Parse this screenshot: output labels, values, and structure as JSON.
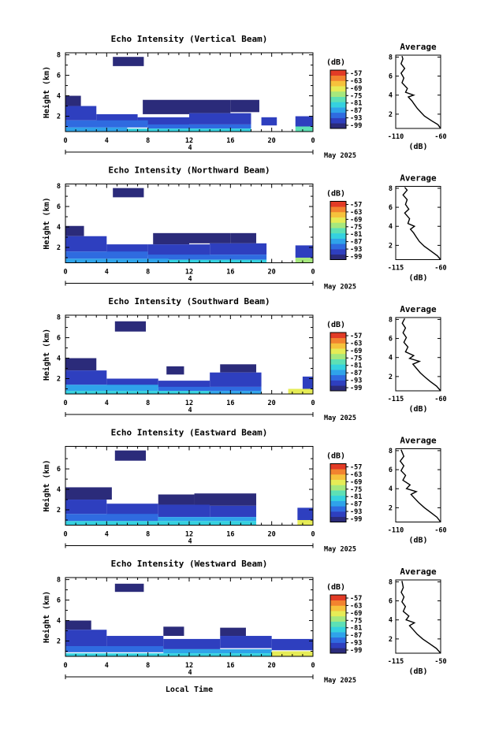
{
  "figure": {
    "footer_label": "Local Time",
    "date_label": "May 2025",
    "colorbar_unit": "(dB)",
    "average_title": "Average",
    "average_xlabel": "(dB)"
  },
  "colors": {
    "palette": [
      "#2b2b7a",
      "#2e3fbf",
      "#2f6be0",
      "#2fa3ea",
      "#35d1df",
      "#5de0b5",
      "#a6e87d",
      "#e6ec56",
      "#f6c23c",
      "#f2832f",
      "#e23b26"
    ]
  },
  "chart_data": [
    {
      "type": "heatmap",
      "title": "Echo Intensity (Vertical Beam)",
      "ylabel": "Height (km)",
      "x": [
        0,
        4,
        8,
        12,
        16,
        20,
        0
      ],
      "y_ticks": [
        2,
        4,
        6,
        8
      ],
      "ylim": [
        0.5,
        8.2
      ],
      "sublabel": "4",
      "colorbar": {
        "ticks": [
          -57,
          -63,
          -69,
          -75,
          -81,
          -87,
          -93,
          -99
        ]
      },
      "average": {
        "title": "Average",
        "xlabel": "(dB)",
        "xlim": [
          -110,
          -60
        ],
        "x_ticks": [
          -110,
          -60
        ],
        "y_ticks": [
          2,
          4,
          6,
          8
        ]
      },
      "regions": [
        {
          "x0": 4.6,
          "x1": 7.6,
          "y0": 6.9,
          "y1": 7.8,
          "level": 0
        },
        {
          "x0": 0.0,
          "x1": 1.5,
          "y0": 3.0,
          "y1": 4.0,
          "level": 0
        },
        {
          "x0": 7.5,
          "x1": 12.0,
          "y0": 2.2,
          "y1": 3.6,
          "level": 0
        },
        {
          "x0": 12.0,
          "x1": 16.0,
          "y0": 2.3,
          "y1": 3.6,
          "level": 0
        },
        {
          "x0": 16.0,
          "x1": 18.8,
          "y0": 2.4,
          "y1": 3.6,
          "level": 0
        },
        {
          "x0": 0.0,
          "x1": 3.0,
          "y0": 1.6,
          "y1": 3.0,
          "level": 1
        },
        {
          "x0": 3.0,
          "x1": 7.0,
          "y0": 1.4,
          "y1": 2.2,
          "level": 1
        },
        {
          "x0": 7.0,
          "x1": 12.0,
          "y0": 1.1,
          "y1": 1.9,
          "level": 1
        },
        {
          "x0": 12.0,
          "x1": 18.0,
          "y0": 1.2,
          "y1": 2.3,
          "level": 1
        },
        {
          "x0": 19.0,
          "x1": 20.5,
          "y0": 1.1,
          "y1": 1.9,
          "level": 1
        },
        {
          "x0": 22.3,
          "x1": 24.0,
          "y0": 1.0,
          "y1": 2.0,
          "level": 1
        },
        {
          "x0": 0.0,
          "x1": 8.0,
          "y0": 0.9,
          "y1": 1.6,
          "level": 2
        },
        {
          "x0": 8.0,
          "x1": 18.0,
          "y0": 0.8,
          "y1": 1.2,
          "level": 2
        },
        {
          "x0": 0.0,
          "x1": 6.0,
          "y0": 0.5,
          "y1": 0.9,
          "level": 3
        },
        {
          "x0": 6.0,
          "x1": 18.0,
          "y0": 0.5,
          "y1": 0.8,
          "level": 4
        },
        {
          "x0": 22.3,
          "x1": 24.0,
          "y0": 0.5,
          "y1": 1.0,
          "level": 5
        }
      ],
      "average_profile": [
        [
          -60,
          0.5
        ],
        [
          -63,
          0.9
        ],
        [
          -70,
          1.3
        ],
        [
          -78,
          1.8
        ],
        [
          -82,
          2.2
        ],
        [
          -86,
          2.6
        ],
        [
          -89,
          3.0
        ],
        [
          -92,
          3.4
        ],
        [
          -96,
          3.8
        ],
        [
          -90,
          4.0
        ],
        [
          -99,
          4.3
        ],
        [
          -97,
          4.7
        ],
        [
          -103,
          5.3
        ],
        [
          -101,
          5.8
        ],
        [
          -104,
          6.3
        ],
        [
          -100,
          6.8
        ],
        [
          -104,
          7.3
        ],
        [
          -102,
          7.8
        ],
        [
          -103,
          8.1
        ]
      ]
    },
    {
      "type": "heatmap",
      "title": "Echo Intensity (Northward Beam)",
      "ylabel": "Height (km)",
      "x": [
        0,
        4,
        8,
        12,
        16,
        20,
        0
      ],
      "y_ticks": [
        2,
        4,
        6,
        8
      ],
      "ylim": [
        0.5,
        8.2
      ],
      "sublabel": "4",
      "colorbar": {
        "ticks": [
          -57,
          -63,
          -69,
          -75,
          -81,
          -87,
          -93,
          -99
        ]
      },
      "average": {
        "title": "Average",
        "xlabel": "(dB)",
        "xlim": [
          -115,
          -60
        ],
        "x_ticks": [
          -115,
          -60
        ],
        "y_ticks": [
          2,
          4,
          6,
          8
        ]
      },
      "regions": [
        {
          "x0": 4.6,
          "x1": 7.6,
          "y0": 6.9,
          "y1": 7.8,
          "level": 0
        },
        {
          "x0": 0.0,
          "x1": 1.8,
          "y0": 3.1,
          "y1": 4.1,
          "level": 0
        },
        {
          "x0": 8.5,
          "x1": 12.0,
          "y0": 2.3,
          "y1": 3.4,
          "level": 0
        },
        {
          "x0": 12.0,
          "x1": 16.0,
          "y0": 2.4,
          "y1": 3.4,
          "level": 0
        },
        {
          "x0": 16.0,
          "x1": 18.5,
          "y0": 2.4,
          "y1": 3.4,
          "level": 0
        },
        {
          "x0": 0.0,
          "x1": 4.0,
          "y0": 1.6,
          "y1": 3.1,
          "level": 1
        },
        {
          "x0": 4.0,
          "x1": 8.0,
          "y0": 1.3,
          "y1": 2.3,
          "level": 1
        },
        {
          "x0": 8.0,
          "x1": 14.0,
          "y0": 1.2,
          "y1": 2.3,
          "level": 1
        },
        {
          "x0": 14.0,
          "x1": 19.5,
          "y0": 1.3,
          "y1": 2.4,
          "level": 1
        },
        {
          "x0": 22.3,
          "x1": 24.0,
          "y0": 1.0,
          "y1": 2.2,
          "level": 1
        },
        {
          "x0": 0.0,
          "x1": 8.0,
          "y0": 0.9,
          "y1": 1.6,
          "level": 2
        },
        {
          "x0": 8.0,
          "x1": 19.5,
          "y0": 0.8,
          "y1": 1.3,
          "level": 2
        },
        {
          "x0": 0.0,
          "x1": 10.0,
          "y0": 0.5,
          "y1": 0.9,
          "level": 3
        },
        {
          "x0": 10.0,
          "x1": 19.5,
          "y0": 0.5,
          "y1": 0.8,
          "level": 4
        },
        {
          "x0": 22.3,
          "x1": 24.0,
          "y0": 0.5,
          "y1": 1.0,
          "level": 6
        }
      ],
      "average_profile": [
        [
          -60,
          0.5
        ],
        [
          -64,
          0.9
        ],
        [
          -72,
          1.4
        ],
        [
          -80,
          1.9
        ],
        [
          -86,
          2.4
        ],
        [
          -90,
          2.9
        ],
        [
          -93,
          3.3
        ],
        [
          -97,
          3.7
        ],
        [
          -92,
          4.0
        ],
        [
          -100,
          4.3
        ],
        [
          -98,
          4.8
        ],
        [
          -104,
          5.4
        ],
        [
          -99,
          5.8
        ],
        [
          -103,
          6.3
        ],
        [
          -101,
          6.8
        ],
        [
          -106,
          7.3
        ],
        [
          -101,
          7.8
        ],
        [
          -104,
          8.1
        ]
      ]
    },
    {
      "type": "heatmap",
      "title": "Echo Intensity (Southward Beam)",
      "ylabel": "Height (km)",
      "x": [
        0,
        4,
        8,
        12,
        16,
        20,
        0
      ],
      "y_ticks": [
        2,
        4,
        6,
        8
      ],
      "ylim": [
        0.5,
        8.2
      ],
      "sublabel": "4",
      "colorbar": {
        "ticks": [
          -57,
          -63,
          -69,
          -75,
          -81,
          -87,
          -93,
          -99
        ]
      },
      "average": {
        "title": "Average",
        "xlabel": "(dB)",
        "xlim": [
          -115,
          -60
        ],
        "x_ticks": [
          -115,
          -60
        ],
        "y_ticks": [
          2,
          4,
          6,
          8
        ]
      },
      "regions": [
        {
          "x0": 4.8,
          "x1": 7.8,
          "y0": 6.6,
          "y1": 7.6,
          "level": 0
        },
        {
          "x0": 0.0,
          "x1": 3.0,
          "y0": 2.8,
          "y1": 4.0,
          "level": 0
        },
        {
          "x0": 9.8,
          "x1": 11.5,
          "y0": 2.4,
          "y1": 3.2,
          "level": 0
        },
        {
          "x0": 15.0,
          "x1": 18.5,
          "y0": 2.6,
          "y1": 3.4,
          "level": 0
        },
        {
          "x0": 0.0,
          "x1": 4.0,
          "y0": 1.4,
          "y1": 2.8,
          "level": 1
        },
        {
          "x0": 4.0,
          "x1": 9.0,
          "y0": 1.2,
          "y1": 2.0,
          "level": 1
        },
        {
          "x0": 9.0,
          "x1": 14.0,
          "y0": 1.1,
          "y1": 1.8,
          "level": 1
        },
        {
          "x0": 14.0,
          "x1": 19.0,
          "y0": 1.2,
          "y1": 2.6,
          "level": 1
        },
        {
          "x0": 23.0,
          "x1": 24.0,
          "y0": 1.0,
          "y1": 2.2,
          "level": 1
        },
        {
          "x0": 0.0,
          "x1": 9.0,
          "y0": 0.8,
          "y1": 1.4,
          "level": 3
        },
        {
          "x0": 9.0,
          "x1": 19.0,
          "y0": 0.8,
          "y1": 1.2,
          "level": 2
        },
        {
          "x0": 0.0,
          "x1": 14.0,
          "y0": 0.5,
          "y1": 0.8,
          "level": 4
        },
        {
          "x0": 14.0,
          "x1": 19.0,
          "y0": 0.5,
          "y1": 0.8,
          "level": 3
        },
        {
          "x0": 21.6,
          "x1": 24.0,
          "y0": 0.5,
          "y1": 1.0,
          "level": 7
        }
      ],
      "average_profile": [
        [
          -60,
          0.5
        ],
        [
          -65,
          1.0
        ],
        [
          -73,
          1.5
        ],
        [
          -80,
          2.0
        ],
        [
          -85,
          2.4
        ],
        [
          -90,
          2.9
        ],
        [
          -94,
          3.3
        ],
        [
          -86,
          3.6
        ],
        [
          -98,
          3.9
        ],
        [
          -93,
          4.2
        ],
        [
          -103,
          4.6
        ],
        [
          -100,
          5.1
        ],
        [
          -105,
          5.6
        ],
        [
          -102,
          6.1
        ],
        [
          -106,
          6.6
        ],
        [
          -103,
          7.1
        ],
        [
          -107,
          7.6
        ],
        [
          -104,
          8.1
        ]
      ]
    },
    {
      "type": "heatmap",
      "title": "Echo Intensity (Eastward Beam)",
      "ylabel": "Height (km)",
      "x": [
        0,
        4,
        8,
        12,
        16,
        20,
        0
      ],
      "y_ticks": [
        2,
        4,
        6
      ],
      "ylim": [
        0.5,
        8.2
      ],
      "sublabel": "4",
      "colorbar": {
        "ticks": [
          -57,
          -63,
          -69,
          -75,
          -81,
          -87,
          -93,
          -99
        ]
      },
      "average": {
        "title": "Average",
        "xlabel": "(dB)",
        "xlim": [
          -110,
          -60
        ],
        "x_ticks": [
          -110,
          -60
        ],
        "y_ticks": [
          2,
          4,
          6,
          8
        ]
      },
      "regions": [
        {
          "x0": 4.8,
          "x1": 7.8,
          "y0": 6.8,
          "y1": 7.8,
          "level": 0
        },
        {
          "x0": 0.0,
          "x1": 4.5,
          "y0": 3.0,
          "y1": 4.2,
          "level": 0
        },
        {
          "x0": 9.0,
          "x1": 12.5,
          "y0": 2.5,
          "y1": 3.5,
          "level": 0
        },
        {
          "x0": 12.5,
          "x1": 18.5,
          "y0": 2.4,
          "y1": 3.6,
          "level": 0
        },
        {
          "x0": 0.0,
          "x1": 4.0,
          "y0": 1.6,
          "y1": 3.0,
          "level": 1
        },
        {
          "x0": 4.0,
          "x1": 9.0,
          "y0": 1.4,
          "y1": 2.6,
          "level": 1
        },
        {
          "x0": 9.0,
          "x1": 14.0,
          "y0": 1.3,
          "y1": 2.5,
          "level": 1
        },
        {
          "x0": 14.0,
          "x1": 18.5,
          "y0": 1.3,
          "y1": 2.4,
          "level": 1
        },
        {
          "x0": 22.5,
          "x1": 24.0,
          "y0": 1.0,
          "y1": 2.2,
          "level": 1
        },
        {
          "x0": 0.0,
          "x1": 9.0,
          "y0": 0.9,
          "y1": 1.6,
          "level": 2
        },
        {
          "x0": 9.0,
          "x1": 18.5,
          "y0": 0.9,
          "y1": 1.3,
          "level": 3
        },
        {
          "x0": 0.0,
          "x1": 18.5,
          "y0": 0.5,
          "y1": 0.9,
          "level": 4
        },
        {
          "x0": 22.5,
          "x1": 24.0,
          "y0": 0.5,
          "y1": 1.0,
          "level": 7
        }
      ],
      "average_profile": [
        [
          -60,
          0.5
        ],
        [
          -64,
          1.0
        ],
        [
          -71,
          1.5
        ],
        [
          -78,
          2.0
        ],
        [
          -84,
          2.5
        ],
        [
          -89,
          3.0
        ],
        [
          -93,
          3.4
        ],
        [
          -87,
          3.7
        ],
        [
          -98,
          4.0
        ],
        [
          -94,
          4.4
        ],
        [
          -102,
          4.9
        ],
        [
          -99,
          5.4
        ],
        [
          -104,
          5.9
        ],
        [
          -101,
          6.4
        ],
        [
          -105,
          6.9
        ],
        [
          -101,
          7.4
        ],
        [
          -104,
          8.1
        ]
      ]
    },
    {
      "type": "heatmap",
      "title": "Echo Intensity (Westward Beam)",
      "ylabel": "Height (km)",
      "x": [
        0,
        4,
        8,
        12,
        16,
        20,
        0
      ],
      "y_ticks": [
        2,
        4,
        6,
        8
      ],
      "ylim": [
        0.5,
        8.2
      ],
      "sublabel": "4",
      "colorbar": {
        "ticks": [
          -57,
          -63,
          -69,
          -75,
          -81,
          -87,
          -93,
          -99
        ]
      },
      "average": {
        "title": "Average",
        "xlabel": "(dB)",
        "xlim": [
          -115,
          -50
        ],
        "x_ticks": [
          -115,
          -50
        ],
        "y_ticks": [
          2,
          4,
          6,
          8
        ]
      },
      "regions": [
        {
          "x0": 4.8,
          "x1": 7.6,
          "y0": 6.8,
          "y1": 7.6,
          "level": 0
        },
        {
          "x0": 0.0,
          "x1": 2.5,
          "y0": 3.1,
          "y1": 4.0,
          "level": 0
        },
        {
          "x0": 9.5,
          "x1": 11.5,
          "y0": 2.5,
          "y1": 3.4,
          "level": 0
        },
        {
          "x0": 15.0,
          "x1": 17.5,
          "y0": 2.5,
          "y1": 3.3,
          "level": 0
        },
        {
          "x0": 0.0,
          "x1": 4.0,
          "y0": 1.5,
          "y1": 3.1,
          "level": 1
        },
        {
          "x0": 4.0,
          "x1": 9.5,
          "y0": 1.3,
          "y1": 2.5,
          "level": 1
        },
        {
          "x0": 9.5,
          "x1": 15.0,
          "y0": 1.2,
          "y1": 2.2,
          "level": 1
        },
        {
          "x0": 15.0,
          "x1": 20.0,
          "y0": 1.3,
          "y1": 2.5,
          "level": 1
        },
        {
          "x0": 20.0,
          "x1": 24.0,
          "y0": 1.1,
          "y1": 2.2,
          "level": 1
        },
        {
          "x0": 0.0,
          "x1": 9.5,
          "y0": 0.9,
          "y1": 1.5,
          "level": 2
        },
        {
          "x0": 9.5,
          "x1": 20.0,
          "y0": 0.8,
          "y1": 1.2,
          "level": 3
        },
        {
          "x0": 0.0,
          "x1": 20.0,
          "y0": 0.5,
          "y1": 0.8,
          "level": 4
        },
        {
          "x0": 20.0,
          "x1": 24.0,
          "y0": 0.5,
          "y1": 1.0,
          "level": 7
        }
      ],
      "average_profile": [
        [
          -50,
          0.5
        ],
        [
          -56,
          1.0
        ],
        [
          -66,
          1.5
        ],
        [
          -76,
          2.0
        ],
        [
          -84,
          2.5
        ],
        [
          -90,
          3.0
        ],
        [
          -95,
          3.4
        ],
        [
          -88,
          3.7
        ],
        [
          -100,
          4.0
        ],
        [
          -96,
          4.4
        ],
        [
          -104,
          4.9
        ],
        [
          -101,
          5.4
        ],
        [
          -106,
          5.9
        ],
        [
          -103,
          6.4
        ],
        [
          -107,
          6.9
        ],
        [
          -104,
          7.4
        ],
        [
          -106,
          8.1
        ]
      ]
    }
  ]
}
